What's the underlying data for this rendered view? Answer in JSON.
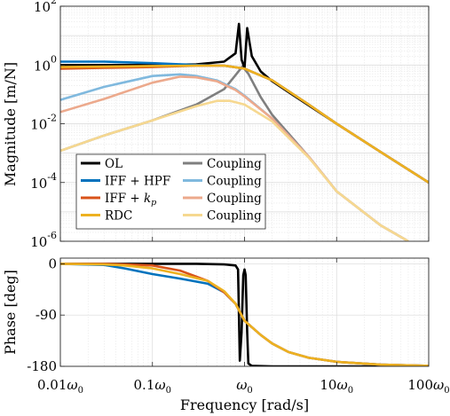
{
  "chart_data": [
    {
      "type": "line",
      "panel": "magnitude",
      "ylabel": "Magnitude [m/N]",
      "yscale": "log",
      "xscale": "log",
      "xlim": [
        0.01,
        100
      ],
      "ylim": [
        1e-06,
        100
      ],
      "ytick_labels": [
        {
          "base": "10",
          "exp": "-6"
        },
        {
          "base": "10",
          "exp": "-4"
        },
        {
          "base": "10",
          "exp": "-2"
        },
        {
          "base": "10",
          "exp": "0"
        },
        {
          "base": "10",
          "exp": "2"
        }
      ],
      "grid": true,
      "legend": {
        "placement": "lower-left",
        "columns": 2,
        "entries": [
          {
            "label": "OL",
            "color": "#000000"
          },
          {
            "label": "IFF + HPF",
            "color": "#0072BD"
          },
          {
            "label": "IFF + ",
            "label_math": "k",
            "label_sub": "p",
            "color": "#D95319"
          },
          {
            "label": "RDC",
            "color": "#EDB120"
          },
          {
            "label": "Coupling",
            "color": "#7F7F7F"
          },
          {
            "label": "Coupling",
            "color": "#80B9DE"
          },
          {
            "label": "Coupling",
            "color": "#ECA98C"
          },
          {
            "label": "Coupling",
            "color": "#F6D890"
          }
        ]
      },
      "series": [
        {
          "name": "OL",
          "color": "#000000",
          "x": [
            0.01,
            0.1,
            0.3,
            0.6,
            0.8,
            0.87,
            0.93,
            1.0,
            1.07,
            1.2,
            1.5,
            2,
            3,
            5,
            10,
            30,
            100
          ],
          "y": [
            1.0,
            1.0,
            1.05,
            1.3,
            2.5,
            25,
            1.5,
            0.8,
            18,
            2.0,
            0.6,
            0.28,
            0.12,
            0.042,
            0.01,
            0.0011,
            0.0001
          ]
        },
        {
          "name": "IFF + HPF",
          "color": "#0072BD",
          "x": [
            0.01,
            0.03,
            0.1,
            0.3,
            0.6,
            1,
            2,
            5,
            10,
            30,
            100
          ],
          "y": [
            1.3,
            1.3,
            1.15,
            1.0,
            0.95,
            0.75,
            0.3,
            0.045,
            0.01,
            0.0011,
            0.0001
          ]
        },
        {
          "name": "IFF + kp",
          "color": "#D95319",
          "x": [
            0.01,
            0.03,
            0.1,
            0.3,
            0.6,
            1,
            2,
            5,
            10,
            30,
            100
          ],
          "y": [
            0.75,
            0.8,
            0.85,
            0.95,
            0.95,
            0.75,
            0.3,
            0.045,
            0.01,
            0.0011,
            0.0001
          ]
        },
        {
          "name": "RDC",
          "color": "#EDB120",
          "x": [
            0.01,
            0.03,
            0.1,
            0.3,
            0.6,
            1,
            2,
            5,
            10,
            30,
            100
          ],
          "y": [
            0.85,
            0.88,
            0.92,
            0.95,
            0.95,
            0.75,
            0.3,
            0.045,
            0.01,
            0.0011,
            0.0001
          ]
        },
        {
          "name": "Coupling",
          "color": "#7F7F7F",
          "x": [
            0.01,
            0.03,
            0.1,
            0.3,
            0.6,
            0.8,
            0.95,
            1.1,
            1.5,
            2,
            5,
            10,
            30,
            60
          ],
          "y": [
            0.0012,
            0.004,
            0.013,
            0.045,
            0.15,
            0.45,
            0.9,
            0.5,
            0.08,
            0.02,
            0.00075,
            5e-05,
            3.5e-06,
            1e-06
          ]
        },
        {
          "name": "Coupling",
          "color": "#80B9DE",
          "x": [
            0.01,
            0.03,
            0.1,
            0.2,
            0.3,
            0.5,
            0.8,
            1,
            2,
            5,
            10,
            30,
            60
          ],
          "y": [
            0.065,
            0.18,
            0.42,
            0.48,
            0.42,
            0.3,
            0.15,
            0.09,
            0.015,
            0.00075,
            5e-05,
            3.5e-06,
            1e-06
          ]
        },
        {
          "name": "Coupling",
          "color": "#ECA98C",
          "x": [
            0.01,
            0.03,
            0.1,
            0.2,
            0.3,
            0.5,
            0.8,
            1,
            2,
            5,
            10,
            30,
            60
          ],
          "y": [
            0.025,
            0.07,
            0.25,
            0.4,
            0.38,
            0.28,
            0.14,
            0.085,
            0.015,
            0.00075,
            5e-05,
            3.5e-06,
            1e-06
          ]
        },
        {
          "name": "Coupling",
          "color": "#F6D890",
          "x": [
            0.01,
            0.03,
            0.1,
            0.3,
            0.5,
            0.7,
            1,
            2,
            5,
            10,
            30,
            60
          ],
          "y": [
            0.0012,
            0.004,
            0.013,
            0.04,
            0.06,
            0.06,
            0.045,
            0.012,
            0.0007,
            5e-05,
            3.5e-06,
            1e-06
          ]
        }
      ]
    },
    {
      "type": "line",
      "panel": "phase",
      "ylabel": "Phase [deg]",
      "xlabel": "Frequency [rad/s]",
      "xscale": "log",
      "xlim": [
        0.01,
        100
      ],
      "ylim": [
        -180,
        10
      ],
      "yticks": [
        0,
        -90,
        -180
      ],
      "ytick_labels": [
        "0",
        "-90",
        "-180"
      ],
      "xtick_labels": [
        {
          "pre": "0.01",
          "sym": "ω",
          "sub": "0"
        },
        {
          "pre": "0.1",
          "sym": "ω",
          "sub": "0"
        },
        {
          "pre": "",
          "sym": "ω",
          "sub": "0"
        },
        {
          "pre": "10",
          "sym": "ω",
          "sub": "0"
        },
        {
          "pre": "100",
          "sym": "ω",
          "sub": "0"
        }
      ],
      "grid": true,
      "series": [
        {
          "name": "OL",
          "color": "#000000",
          "x": [
            0.01,
            0.3,
            0.6,
            0.8,
            0.85,
            0.87,
            0.89,
            0.93,
            0.97,
            1.0,
            1.03,
            1.07,
            1.1,
            1.2,
            2,
            10,
            100
          ],
          "y": [
            0,
            0,
            -1,
            -3,
            -10,
            -90,
            -170,
            -120,
            -20,
            -10,
            -20,
            -120,
            -175,
            -179,
            -180,
            -180,
            -180
          ]
        },
        {
          "name": "IFF + HPF",
          "color": "#0072BD",
          "x": [
            0.01,
            0.03,
            0.05,
            0.1,
            0.2,
            0.4,
            0.6,
            0.8,
            1,
            1.5,
            2,
            3,
            5,
            10,
            30,
            100
          ],
          "y": [
            0,
            -2,
            -8,
            -18,
            -26,
            -35,
            -50,
            -70,
            -100,
            -125,
            -140,
            -155,
            -165,
            -172,
            -177,
            -179
          ]
        },
        {
          "name": "IFF + kp",
          "color": "#D95319",
          "x": [
            0.01,
            0.03,
            0.05,
            0.1,
            0.2,
            0.4,
            0.6,
            0.8,
            1,
            1.5,
            2,
            3,
            5,
            10,
            30,
            100
          ],
          "y": [
            0,
            0,
            -1,
            -3,
            -12,
            -30,
            -50,
            -70,
            -100,
            -125,
            -140,
            -155,
            -165,
            -172,
            -177,
            -179
          ]
        },
        {
          "name": "RDC",
          "color": "#EDB120",
          "x": [
            0.01,
            0.03,
            0.05,
            0.1,
            0.2,
            0.4,
            0.6,
            0.8,
            1,
            1.5,
            2,
            3,
            5,
            10,
            30,
            100
          ],
          "y": [
            0,
            -1,
            -3,
            -8,
            -18,
            -30,
            -48,
            -70,
            -100,
            -125,
            -140,
            -155,
            -165,
            -172,
            -177,
            -179
          ]
        }
      ]
    }
  ]
}
